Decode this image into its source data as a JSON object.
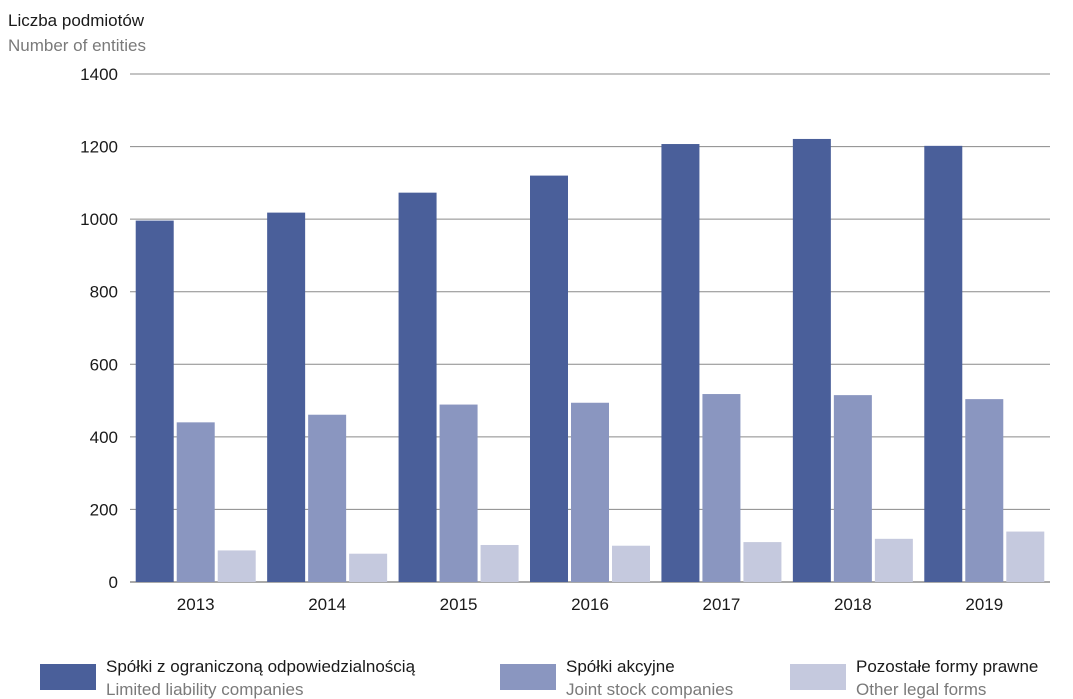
{
  "chart_data": {
    "type": "bar",
    "ylabel_pl": "Liczba podmiotów",
    "ylabel_en": "Number of entities",
    "categories": [
      "2013",
      "2014",
      "2015",
      "2016",
      "2017",
      "2018",
      "2019"
    ],
    "ylim": [
      0,
      1400
    ],
    "yticks": [
      0,
      200,
      400,
      600,
      800,
      1000,
      1200,
      1400
    ],
    "grid": true,
    "legend_position": "bottom",
    "series": [
      {
        "name": "Spółki z ograniczoną odpowiedzialnością",
        "name_en": "Limited liability companies",
        "color": "#4a5f9a",
        "values": [
          996,
          1018,
          1073,
          1120,
          1207,
          1221,
          1202
        ]
      },
      {
        "name": "Spółki akcyjne",
        "name_en": "Joint stock companies",
        "color": "#8a96c0",
        "values": [
          440,
          461,
          489,
          494,
          518,
          515,
          504
        ]
      },
      {
        "name": "Pozostałe formy prawne",
        "name_en": "Other legal forms",
        "color": "#c5c9de",
        "values": [
          87,
          78,
          102,
          100,
          110,
          119,
          139
        ]
      }
    ]
  }
}
